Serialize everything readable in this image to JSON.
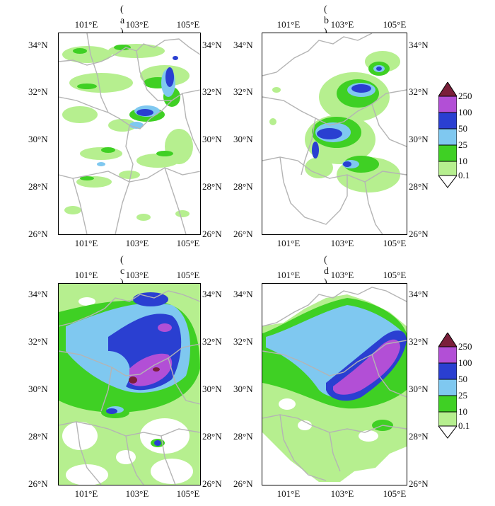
{
  "panels": [
    {
      "label": "( a )"
    },
    {
      "label": "( b )"
    },
    {
      "label": "( c )"
    },
    {
      "label": "( d )"
    }
  ],
  "axes": {
    "x_ticks": [
      "101°E",
      "103°E",
      "105°E"
    ],
    "y_ticks": [
      "34°N",
      "32°N",
      "30°N",
      "28°N",
      "26°N"
    ]
  },
  "legend": {
    "levels": [
      "250",
      "100",
      "50",
      "25",
      "10",
      "0.1"
    ],
    "colors": {
      "250": "#7a1f3a",
      "100": "#b24fd6",
      "50": "#2a3fd1",
      "25": "#7fc8f0",
      "10": "#3fd024",
      "0.1": "#b6ef8f"
    }
  },
  "colors": {
    "boundary": "#b4b4b4",
    "frame": "#000000"
  }
}
